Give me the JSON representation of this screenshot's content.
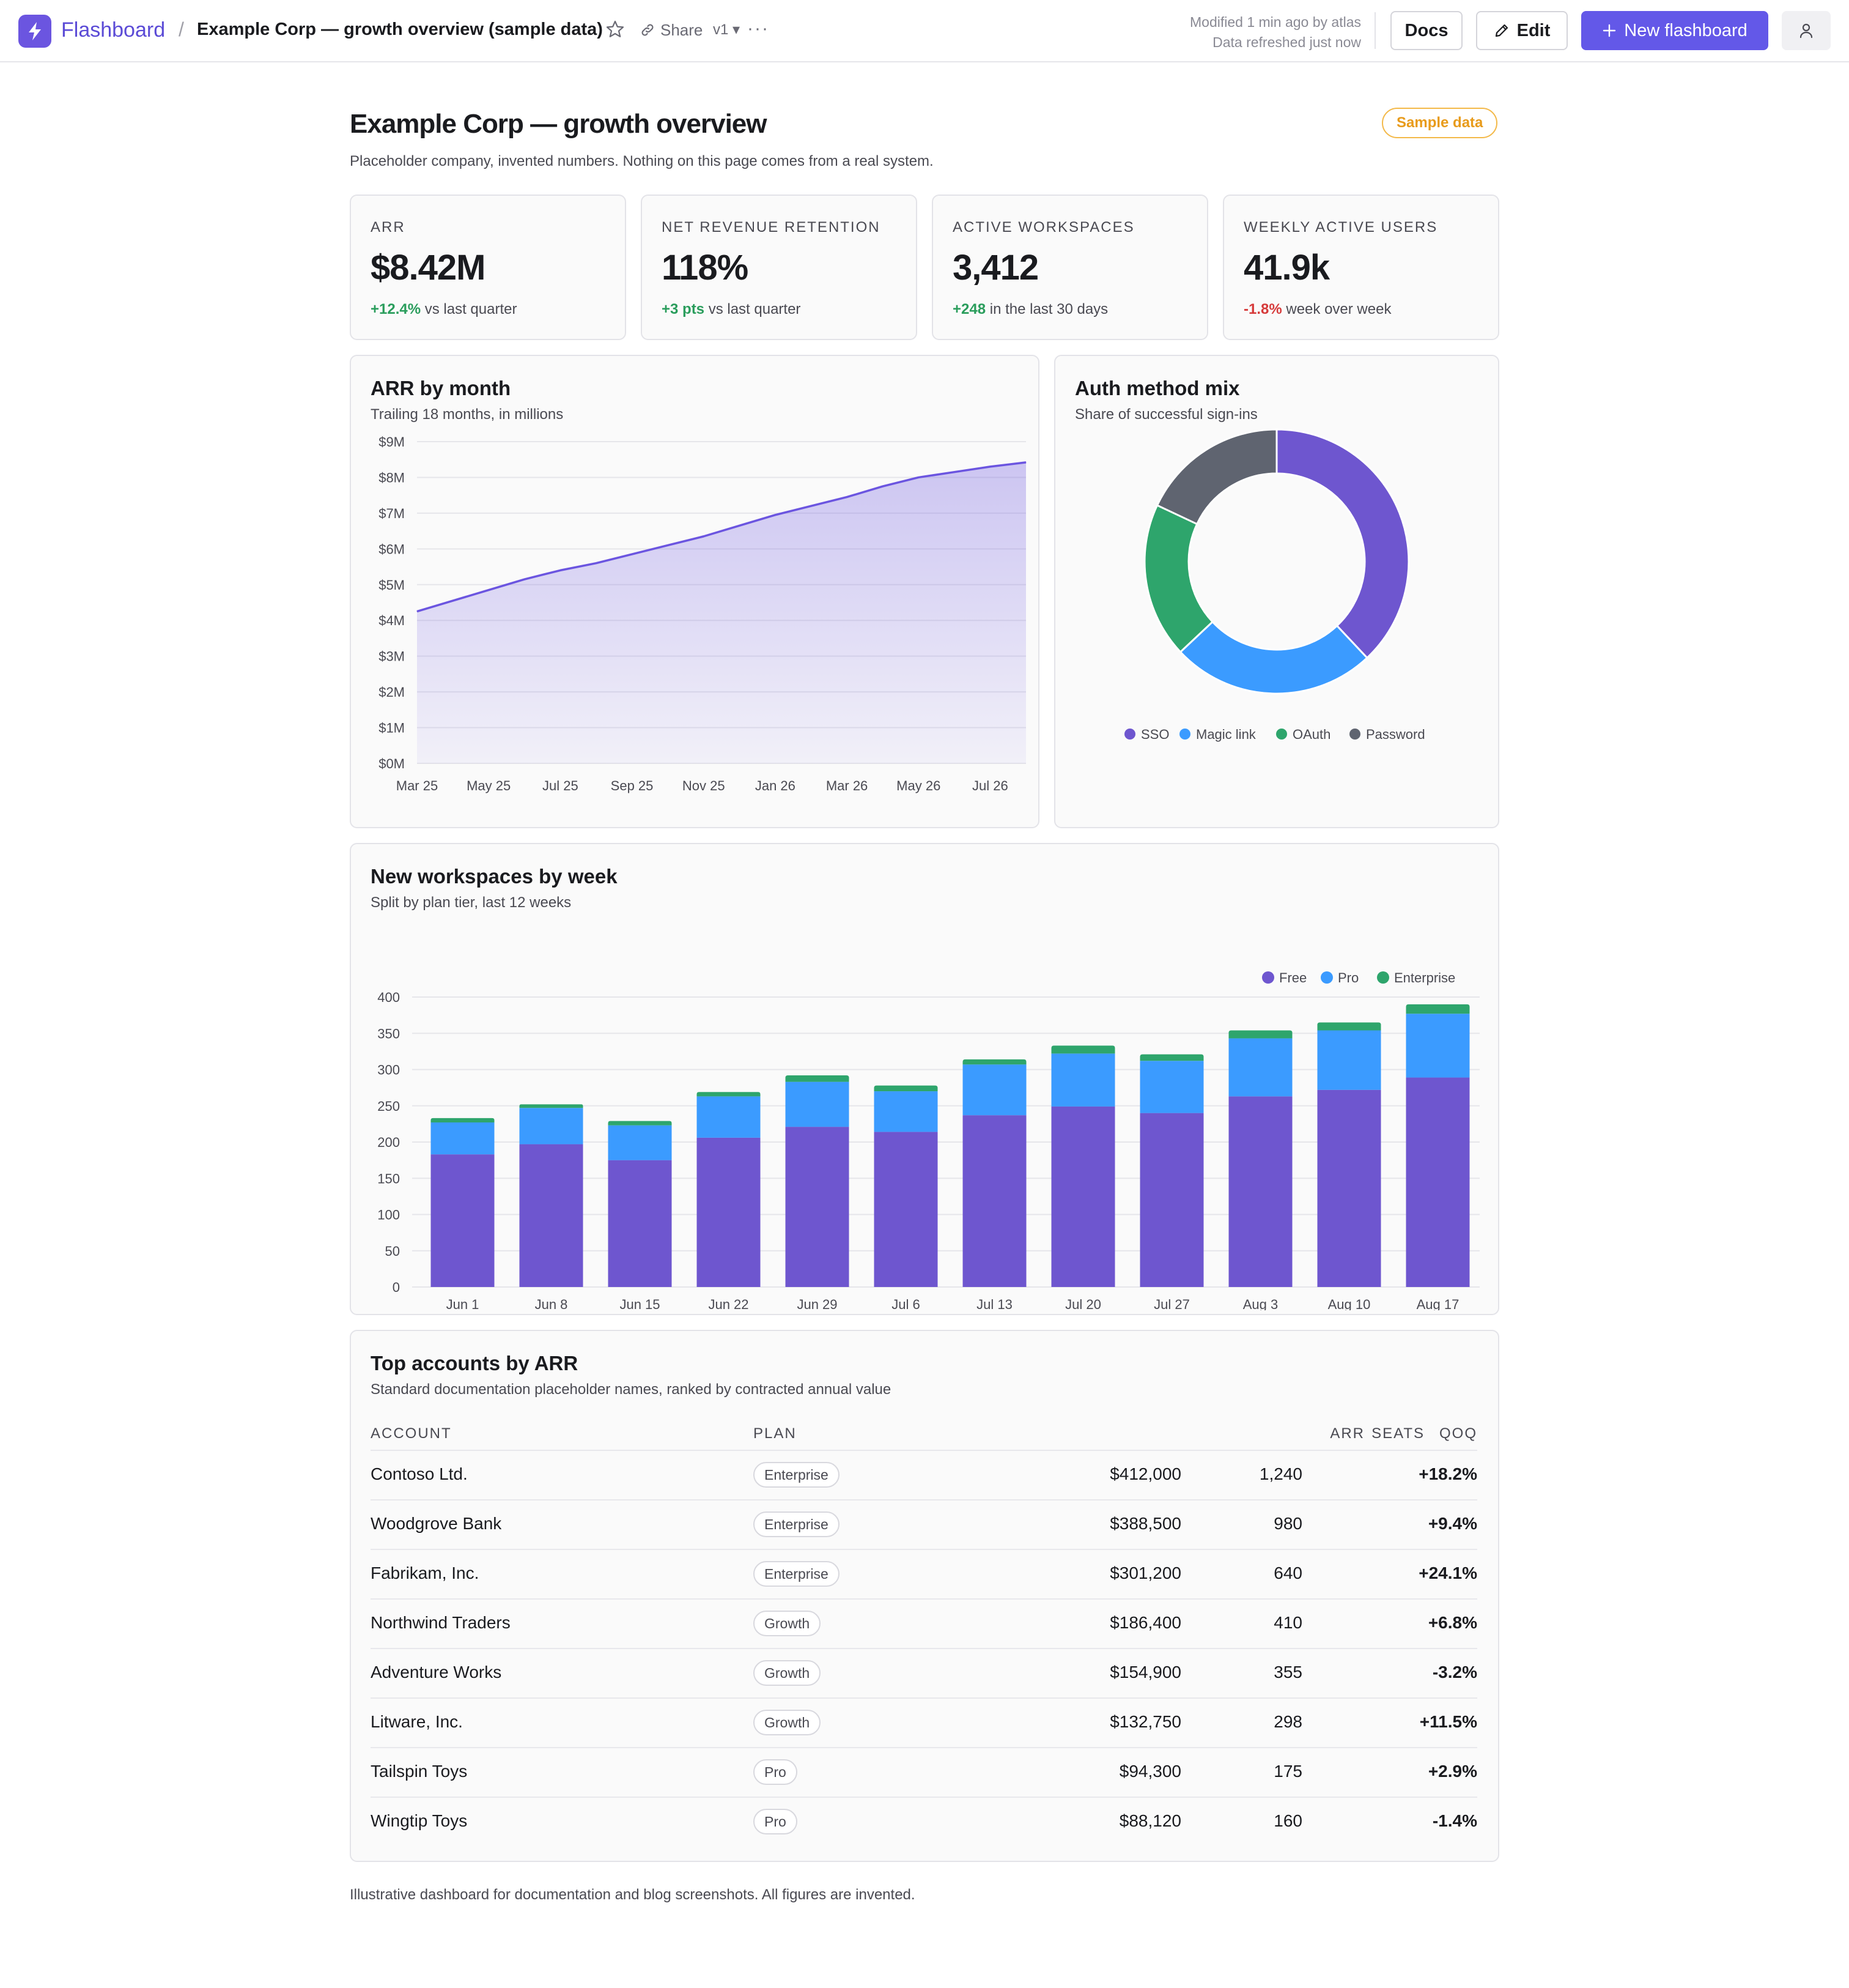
{
  "app": {
    "brand": "Flashboard",
    "breadcrumb_separator": "/",
    "dashboard_title": "Example Corp — growth overview (sample data)",
    "share_label": "Share",
    "version_label": "v1 ▾",
    "more_label": "···",
    "modified_text": "Modified 1 min ago by atlas",
    "refreshed_text": "Data refreshed just now",
    "docs_label": "Docs",
    "edit_label": "Edit",
    "new_label": "New flashboard"
  },
  "header": {
    "title": "Example Corp — growth overview",
    "subtitle": "Placeholder company, invented numbers. Nothing on this page comes from a real system.",
    "badge": "Sample data"
  },
  "kpis": [
    {
      "label": "ARR",
      "value": "$8.42M",
      "delta": "+12.4%",
      "delta_text": " vs last quarter",
      "trend": "pos"
    },
    {
      "label": "NET REVENUE RETENTION",
      "value": "118%",
      "delta": "+3 pts",
      "delta_text": " vs last quarter",
      "trend": "pos"
    },
    {
      "label": "ACTIVE WORKSPACES",
      "value": "3,412",
      "delta": "+248",
      "delta_text": " in the last 30 days",
      "trend": "pos"
    },
    {
      "label": "WEEKLY ACTIVE USERS",
      "value": "41.9k",
      "delta": "-1.8%",
      "delta_text": " week over week",
      "trend": "neg"
    }
  ],
  "arr_chart": {
    "title": "ARR by month",
    "subtitle": "Trailing 18 months, in millions"
  },
  "auth_chart": {
    "title": "Auth method mix",
    "subtitle": "Share of successful sign-ins"
  },
  "workspaces_chart": {
    "title": "New workspaces by week",
    "subtitle": "Split by plan tier, last 12 weeks"
  },
  "chart_data": [
    {
      "type": "area",
      "x": [
        "Mar 25",
        "Apr 25",
        "May 25",
        "Jun 25",
        "Jul 25",
        "Aug 25",
        "Sep 25",
        "Oct 25",
        "Nov 25",
        "Dec 25",
        "Jan 26",
        "Feb 26",
        "Mar 26",
        "Apr 26",
        "May 26",
        "Jun 26",
        "Jul 26",
        "Aug 26"
      ],
      "x_tick_labels": [
        "Mar 25",
        "May 25",
        "Jul 25",
        "Sep 25",
        "Nov 25",
        "Jan 26",
        "Mar 26",
        "May 26",
        "Jul 26"
      ],
      "values": [
        4.25,
        4.55,
        4.85,
        5.15,
        5.4,
        5.6,
        5.85,
        6.1,
        6.35,
        6.65,
        6.95,
        7.2,
        7.45,
        7.75,
        8.0,
        8.15,
        8.3,
        8.42
      ],
      "ylim": [
        0,
        9
      ],
      "y_ticks": [
        "$0M",
        "$1M",
        "$2M",
        "$3M",
        "$4M",
        "$5M",
        "$6M",
        "$7M",
        "$8M",
        "$9M"
      ],
      "series_color": "#6b55e0",
      "grid": true
    },
    {
      "type": "pie",
      "style": "donut",
      "labels": [
        "SSO",
        "Magic link",
        "OAuth",
        "Password"
      ],
      "values": [
        38,
        25,
        19,
        18
      ],
      "colors": [
        "#6e56cf",
        "#3b9bff",
        "#2ea56c",
        "#5f6470"
      ],
      "legend": "bottom"
    },
    {
      "type": "bar",
      "stacked": true,
      "categories": [
        "Jun 1",
        "Jun 8",
        "Jun 15",
        "Jun 22",
        "Jun 29",
        "Jul 6",
        "Jul 13",
        "Jul 20",
        "Jul 27",
        "Aug 3",
        "Aug 10",
        "Aug 17"
      ],
      "series": [
        {
          "name": "Free",
          "color": "#6e56cf",
          "values": [
            183,
            197,
            175,
            206,
            221,
            214,
            237,
            249,
            240,
            263,
            272,
            289
          ]
        },
        {
          "name": "Pro",
          "color": "#3b9bff",
          "values": [
            44,
            50,
            48,
            57,
            62,
            56,
            70,
            73,
            72,
            80,
            82,
            88
          ]
        },
        {
          "name": "Enterprise",
          "color": "#2ea56c",
          "values": [
            6,
            5,
            6,
            6,
            9,
            8,
            7,
            11,
            9,
            11,
            11,
            13
          ]
        }
      ],
      "ylim": [
        0,
        400
      ],
      "y_ticks": [
        "0",
        "50",
        "100",
        "150",
        "200",
        "250",
        "300",
        "350",
        "400"
      ],
      "legend": "top-right",
      "grid": true
    }
  ],
  "accounts": {
    "title": "Top accounts by ARR",
    "subtitle": "Standard documentation placeholder names, ranked by contracted annual value",
    "columns": {
      "account": "ACCOUNT",
      "plan": "PLAN",
      "arr": "ARR",
      "seats": "SEATS",
      "qoq": "QOQ"
    },
    "rows": [
      {
        "account": "Contoso Ltd.",
        "plan": "Enterprise",
        "arr": "$412,000",
        "seats": "1,240",
        "qoq": "+18.2%",
        "trend": "pos"
      },
      {
        "account": "Woodgrove Bank",
        "plan": "Enterprise",
        "arr": "$388,500",
        "seats": "980",
        "qoq": "+9.4%",
        "trend": "pos"
      },
      {
        "account": "Fabrikam, Inc.",
        "plan": "Enterprise",
        "arr": "$301,200",
        "seats": "640",
        "qoq": "+24.1%",
        "trend": "pos"
      },
      {
        "account": "Northwind Traders",
        "plan": "Growth",
        "arr": "$186,400",
        "seats": "410",
        "qoq": "+6.8%",
        "trend": "pos"
      },
      {
        "account": "Adventure Works",
        "plan": "Growth",
        "arr": "$154,900",
        "seats": "355",
        "qoq": "-3.2%",
        "trend": "neg"
      },
      {
        "account": "Litware, Inc.",
        "plan": "Growth",
        "arr": "$132,750",
        "seats": "298",
        "qoq": "+11.5%",
        "trend": "pos"
      },
      {
        "account": "Tailspin Toys",
        "plan": "Pro",
        "arr": "$94,300",
        "seats": "175",
        "qoq": "+2.9%",
        "trend": "pos"
      },
      {
        "account": "Wingtip Toys",
        "plan": "Pro",
        "arr": "$88,120",
        "seats": "160",
        "qoq": "-1.4%",
        "trend": "neg"
      }
    ]
  },
  "footer": "Illustrative dashboard for documentation and blog screenshots. All figures are invented."
}
